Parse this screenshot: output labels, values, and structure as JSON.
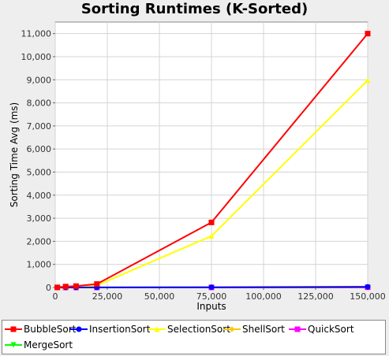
{
  "chart_data": {
    "type": "line",
    "title": "Sorting Runtimes (K-Sorted)",
    "xlabel": "Inputs",
    "ylabel": "Sorting Time Avg (ms)",
    "xlim": [
      0,
      150000
    ],
    "ylim": [
      0,
      11500
    ],
    "x_ticks": [
      "0",
      "25,000",
      "50,000",
      "75,000",
      "100,000",
      "125,000",
      "150,000"
    ],
    "y_ticks": [
      "0",
      "1,000",
      "2,000",
      "3,000",
      "4,000",
      "5,000",
      "6,000",
      "7,000",
      "8,000",
      "9,000",
      "10,000",
      "11,000"
    ],
    "grid": true,
    "legend_position": "bottom",
    "x": [
      1000,
      5000,
      10000,
      20000,
      75000,
      150000
    ],
    "series": [
      {
        "name": "BubbleSort",
        "color": "#ff0000",
        "marker": "square",
        "values": [
          5,
          40,
          60,
          150,
          2820,
          11000
        ]
      },
      {
        "name": "InsertionSort",
        "color": "#0000ff",
        "marker": "circle",
        "values": [
          0,
          0,
          1,
          3,
          10,
          25
        ]
      },
      {
        "name": "SelectionSort",
        "color": "#ffff00",
        "marker": "triangle-up",
        "values": [
          3,
          15,
          30,
          90,
          2230,
          8980
        ]
      },
      {
        "name": "ShellSort",
        "color": "#ffc800",
        "marker": "diamond",
        "values": [
          0,
          1,
          2,
          4,
          15,
          40
        ]
      },
      {
        "name": "QuickSort",
        "color": "#ff00ff",
        "marker": "square",
        "values": [
          0,
          0,
          1,
          1,
          5,
          10
        ]
      },
      {
        "name": "MergeSort",
        "color": "#00ff00",
        "marker": "triangle-down",
        "values": [
          0,
          0,
          1,
          1,
          4,
          8
        ]
      }
    ]
  }
}
